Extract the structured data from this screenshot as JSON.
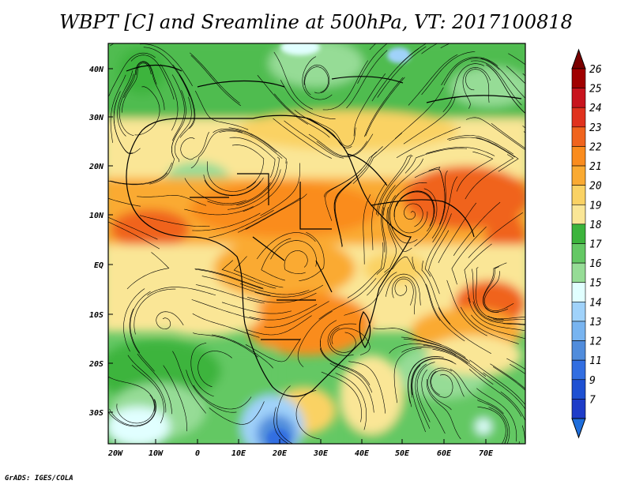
{
  "title": "WBPT [C] and Sreamline at 500hPa, VT: 2017100818",
  "footer": "GrADS: IGES/COLA",
  "map": {
    "lat_labels": [
      "40N",
      "30N",
      "20N",
      "10N",
      "EQ",
      "10S",
      "20S",
      "30S"
    ],
    "lon_labels": [
      "20W",
      "10W",
      "0",
      "10E",
      "20E",
      "30E",
      "40E",
      "50E",
      "60E",
      "70E"
    ]
  },
  "colorbar": {
    "labels": [
      "26",
      "25",
      "24",
      "23",
      "22",
      "21",
      "20",
      "19",
      "18",
      "17",
      "16",
      "15",
      "14",
      "13",
      "12",
      "11",
      "9",
      "7"
    ],
    "colors": [
      "#a00000",
      "#c8141e",
      "#e0321e",
      "#f0641e",
      "#fa8c1e",
      "#faaa32",
      "#fad264",
      "#fae696",
      "#3cb43c",
      "#64c864",
      "#96dc96",
      "#e1ffff",
      "#a0d2fa",
      "#78b4f0",
      "#508cdc",
      "#326ee1",
      "#1e50d2",
      "#1e3cc8"
    ]
  }
}
